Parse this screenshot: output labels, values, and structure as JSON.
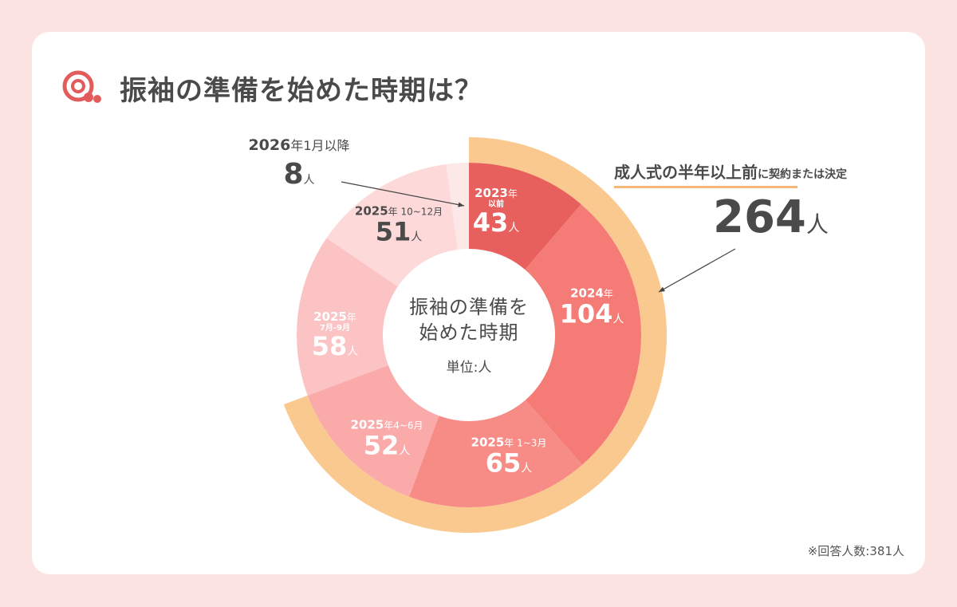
{
  "title": "振袖の準備を始めた時期は？",
  "icon": "q-bubble-icon",
  "colors": {
    "background": "#fbe3e2",
    "accent_ring": "#f9c98f",
    "underline": "#f7b77a"
  },
  "center": {
    "line1": "振袖の準備を",
    "line2": "始めた時期",
    "unit": "単位:人"
  },
  "callout": {
    "emphasis": "成人式の半年以上前",
    "rest": "に契約または決定",
    "value": "264",
    "unit": "人"
  },
  "note": "※回答人数:381人",
  "chart_data": {
    "type": "pie",
    "donut": true,
    "unit": "人",
    "start": "top, clockwise",
    "categories": [
      "2023年以前",
      "2024年",
      "2025年1~3月",
      "2025年4~6月",
      "2025年7月-9月",
      "2025年10~12月",
      "2026年1月以降"
    ],
    "values": [
      43,
      104,
      65,
      52,
      58,
      51,
      8
    ],
    "colors": [
      "#e8605e",
      "#f47b76",
      "#f78b86",
      "#f9aaa9",
      "#fbc3c3",
      "#fdd9d9",
      "#fde8e8"
    ],
    "labels": [
      {
        "p1": "2023",
        "p2": "年",
        "sub": "以前",
        "v": "43",
        "u": "人"
      },
      {
        "p1": "2024",
        "p2": "年",
        "sub": "",
        "v": "104",
        "u": "人"
      },
      {
        "p1": "2025",
        "p2": "年 1~3月",
        "sub": "",
        "v": "65",
        "u": "人"
      },
      {
        "p1": "2025",
        "p2": "年4~6月",
        "sub": "",
        "v": "52",
        "u": "人"
      },
      {
        "p1": "2025",
        "p2": "年",
        "sub": "7月-9月",
        "v": "58",
        "u": "人"
      },
      {
        "p1": "2025",
        "p2": "年 10~12月",
        "sub": "",
        "v": "51",
        "u": "人"
      },
      {
        "p1": "2026",
        "p2": "年1月以降",
        "sub": "",
        "v": "8",
        "u": "人"
      }
    ],
    "highlight_ring": {
      "covers": [
        "2023年以前",
        "2024年",
        "2025年1~3月",
        "2025年4~6月"
      ],
      "total": 264
    }
  }
}
